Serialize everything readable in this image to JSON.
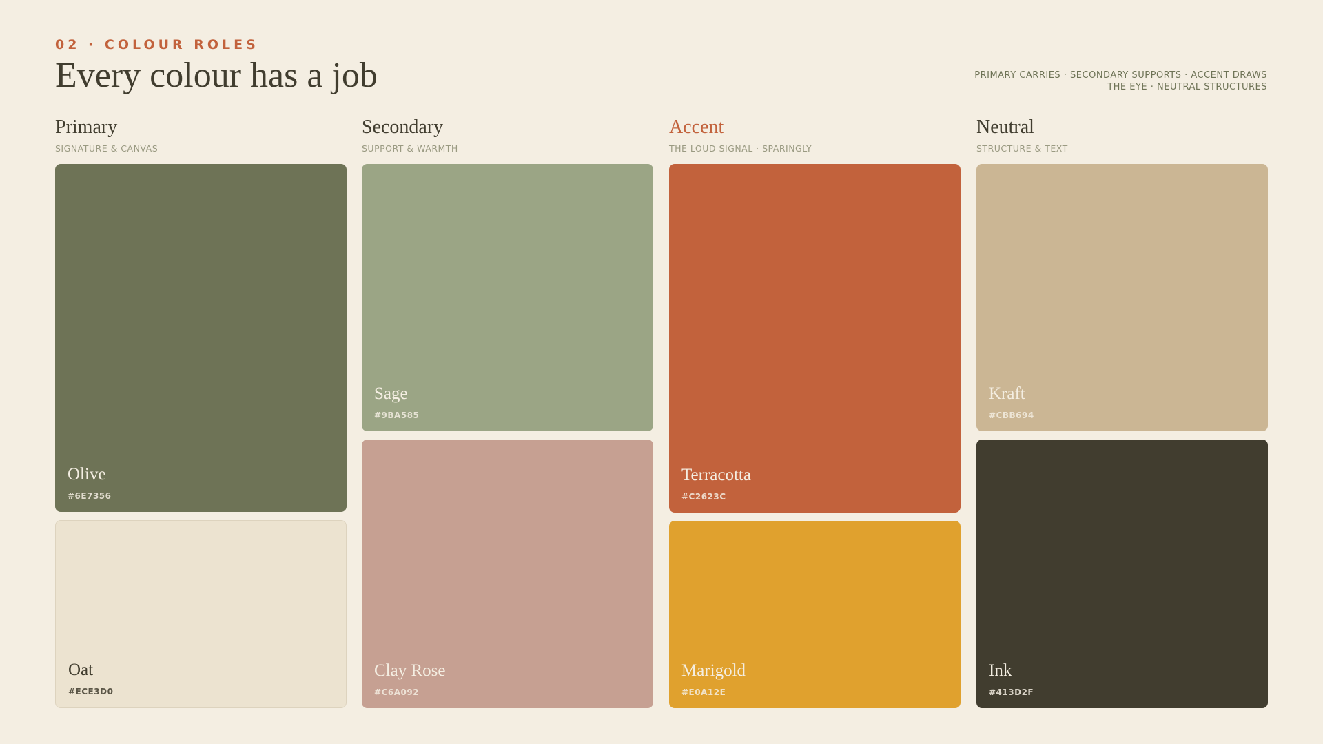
{
  "header": {
    "eyebrow": "02 · COLOUR ROLES",
    "title": "Every colour has a job",
    "note_lines": [
      "PRIMARY CARRIES · SECONDARY SUPPORTS · ACCENT DRAWS",
      "THE EYE · NEUTRAL STRUCTURES"
    ]
  },
  "columns": [
    {
      "title": "Primary",
      "subtitle": "SIGNATURE & CANVAS",
      "swatches": [
        {
          "name": "Olive",
          "hex": "#6E7356"
        },
        {
          "name": "Oat",
          "hex": "#ECE3D0"
        }
      ]
    },
    {
      "title": "Secondary",
      "subtitle": "SUPPORT & WARMTH",
      "swatches": [
        {
          "name": "Sage",
          "hex": "#9BA585"
        },
        {
          "name": "Clay Rose",
          "hex": "#C6A092"
        }
      ]
    },
    {
      "title": "Accent",
      "subtitle": "THE LOUD SIGNAL · SPARINGLY",
      "swatches": [
        {
          "name": "Terracotta",
          "hex": "#C2623C"
        },
        {
          "name": "Marigold",
          "hex": "#E0A12E"
        }
      ]
    },
    {
      "title": "Neutral",
      "subtitle": "STRUCTURE & TEXT",
      "swatches": [
        {
          "name": "Kraft",
          "hex": "#CBB694"
        },
        {
          "name": "Ink",
          "hex": "#413D2F"
        }
      ]
    }
  ]
}
